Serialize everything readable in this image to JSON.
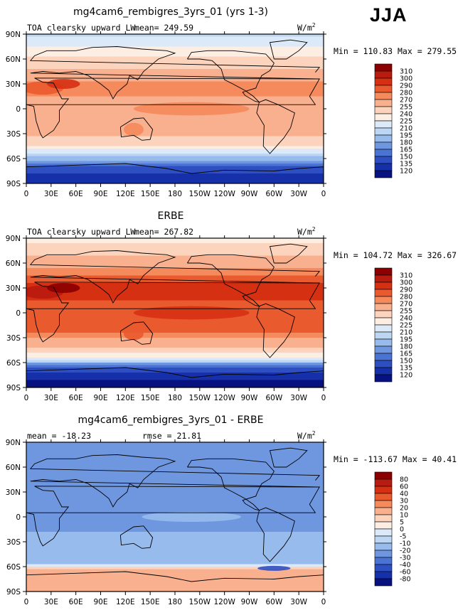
{
  "season": "JJA",
  "chart_data": [
    {
      "type": "heatmap",
      "title": "mg4cam6_rembigres_3yrs_01 (yrs 1-3)",
      "left_label": "TOA clearsky upward LW",
      "mean_label": "mean= 249.59",
      "units": "W/m",
      "units_exp": "2",
      "minmax": "Min = 110.83 Max = 279.55",
      "x_ticks": [
        "0",
        "30E",
        "60E",
        "90E",
        "120E",
        "150E",
        "180",
        "150W",
        "120W",
        "90W",
        "60W",
        "30W",
        "0"
      ],
      "y_ticks": [
        "90N",
        "60N",
        "30N",
        "0",
        "30S",
        "60S",
        "90S"
      ],
      "levels": [
        "310",
        "300",
        "290",
        "280",
        "270",
        "255",
        "240",
        "225",
        "210",
        "195",
        "180",
        "165",
        "150",
        "135",
        "120"
      ],
      "colors": [
        "#8b0000",
        "#b81b0f",
        "#d63013",
        "#ea5a2f",
        "#f58a5c",
        "#f9b08f",
        "#fcd3bd",
        "#fdeee3",
        "#dbe9f8",
        "#bcd6f3",
        "#97bbec",
        "#6f97e0",
        "#4a73d4",
        "#2d4fc2",
        "#1530a8",
        "#07117f"
      ],
      "zones": [
        {
          "lat": 90,
          "val": 205
        },
        {
          "lat": 75,
          "val": 225
        },
        {
          "lat": 60,
          "val": 243
        },
        {
          "lat": 45,
          "val": 258
        },
        {
          "lat": 30,
          "val": 272
        },
        {
          "lat": 15,
          "val": 270
        },
        {
          "lat": 0,
          "val": 266
        },
        {
          "lat": -15,
          "val": 270
        },
        {
          "lat": -30,
          "val": 260
        },
        {
          "lat": -45,
          "val": 238
        },
        {
          "lat": -55,
          "val": 208
        },
        {
          "lat": -62,
          "val": 180
        },
        {
          "lat": -70,
          "val": 150
        },
        {
          "lat": -80,
          "val": 132
        },
        {
          "lat": -90,
          "val": 125
        }
      ]
    },
    {
      "type": "heatmap",
      "title": "ERBE",
      "left_label": "TOA clearsky upward LW",
      "mean_label": "mean= 267.82",
      "units": "W/m",
      "units_exp": "2",
      "minmax": "Min = 104.72 Max = 326.67",
      "x_ticks": [
        "0",
        "30E",
        "60E",
        "90E",
        "120E",
        "150E",
        "180",
        "150W",
        "120W",
        "90W",
        "60W",
        "30W",
        "0"
      ],
      "y_ticks": [
        "90N",
        "60N",
        "30N",
        "0",
        "30S",
        "60S",
        "90S"
      ],
      "levels": [
        "310",
        "300",
        "290",
        "280",
        "270",
        "255",
        "240",
        "225",
        "210",
        "195",
        "180",
        "165",
        "150",
        "135",
        "120"
      ],
      "colors": [
        "#8b0000",
        "#b81b0f",
        "#d63013",
        "#ea5a2f",
        "#f58a5c",
        "#f9b08f",
        "#fcd3bd",
        "#fdeee3",
        "#dbe9f8",
        "#bcd6f3",
        "#97bbec",
        "#6f97e0",
        "#4a73d4",
        "#2d4fc2",
        "#1530a8",
        "#07117f"
      ],
      "zones": [
        {
          "lat": 90,
          "val": 235
        },
        {
          "lat": 75,
          "val": 248
        },
        {
          "lat": 60,
          "val": 262
        },
        {
          "lat": 45,
          "val": 280
        },
        {
          "lat": 30,
          "val": 295
        },
        {
          "lat": 15,
          "val": 290
        },
        {
          "lat": 0,
          "val": 285
        },
        {
          "lat": -15,
          "val": 290
        },
        {
          "lat": -30,
          "val": 272
        },
        {
          "lat": -45,
          "val": 250
        },
        {
          "lat": -55,
          "val": 225
        },
        {
          "lat": -62,
          "val": 170
        },
        {
          "lat": -70,
          "val": 140
        },
        {
          "lat": -80,
          "val": 122
        },
        {
          "lat": -90,
          "val": 112
        }
      ]
    },
    {
      "type": "heatmap",
      "title": "mg4cam6_rembigres_3yrs_01 - ERBE",
      "left_label": "mean = -18.23",
      "mean_label": "rmse =  21.81",
      "units": "W/m",
      "units_exp": "2",
      "minmax": "Min = -113.67 Max =  40.41",
      "x_ticks": [
        "0",
        "30E",
        "60E",
        "90E",
        "120E",
        "150E",
        "180",
        "150W",
        "120W",
        "90W",
        "60W",
        "30W",
        "0"
      ],
      "y_ticks": [
        "90N",
        "60N",
        "30N",
        "0",
        "30S",
        "60S",
        "90S"
      ],
      "levels": [
        "80",
        "60",
        "40",
        "30",
        "20",
        "10",
        "5",
        "0",
        "-5",
        "-10",
        "-20",
        "-30",
        "-40",
        "-60",
        "-80"
      ],
      "colors": [
        "#8b0000",
        "#b81b0f",
        "#d63013",
        "#ea5a2f",
        "#f58a5c",
        "#f9b08f",
        "#fcd3bd",
        "#fdeee3",
        "#dbe9f8",
        "#bcd6f3",
        "#97bbec",
        "#6f97e0",
        "#4a73d4",
        "#2d4fc2",
        "#1530a8",
        "#07117f"
      ],
      "zones": [
        {
          "lat": 90,
          "val": -28
        },
        {
          "lat": 75,
          "val": -24
        },
        {
          "lat": 60,
          "val": -22
        },
        {
          "lat": 45,
          "val": -24
        },
        {
          "lat": 30,
          "val": -25
        },
        {
          "lat": 15,
          "val": -22
        },
        {
          "lat": 0,
          "val": -20
        },
        {
          "lat": -15,
          "val": -22
        },
        {
          "lat": -30,
          "val": -14
        },
        {
          "lat": -45,
          "val": -12
        },
        {
          "lat": -55,
          "val": -18
        },
        {
          "lat": -62,
          "val": 12
        },
        {
          "lat": -70,
          "val": 18
        },
        {
          "lat": -80,
          "val": 15
        },
        {
          "lat": -90,
          "val": 12
        }
      ]
    }
  ]
}
